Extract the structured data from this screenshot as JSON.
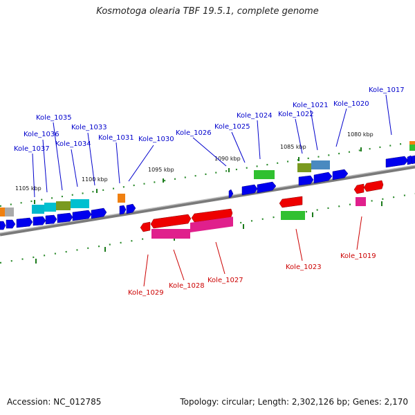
{
  "title": "Kosmotoga olearia TBF 19.5.1, complete genome",
  "footer": {
    "accession": "Accession: NC_012785",
    "topology": "Topology: circular; Length: 2,302,126 bp; Genes: 2,170"
  },
  "scale_labels": [
    "1105 kbp",
    "1100 kbp",
    "1095 kbp",
    "1090 kbp",
    "1085 kbp",
    "1080 kbp"
  ],
  "forward_gene_labels": [
    "Kole_1037",
    "Kole_1036",
    "Kole_1035",
    "Kole_1034",
    "Kole_1033",
    "Kole_1031",
    "Kole_1030",
    "Kole_1026",
    "Kole_1025",
    "Kole_1024",
    "Kole_1022",
    "Kole_1021",
    "Kole_1020",
    "Kole_1017"
  ],
  "reverse_gene_labels": [
    "Kole_1029",
    "Kole_1028",
    "Kole_1027",
    "Kole_1023",
    "Kole_1019"
  ],
  "colors": {
    "forward_label": "#0000cc",
    "reverse_label": "#cc0000",
    "forward_gene": "#0000ee",
    "reverse_gene": "#ee0000",
    "rna_pink": "#e0208c",
    "cyan_feature": "#00c0d0",
    "olive_feature": "#7a9a20",
    "green_feature": "#30c030",
    "orange_feature": "#f08010",
    "backbone": "#888888",
    "tick": "#228822"
  }
}
